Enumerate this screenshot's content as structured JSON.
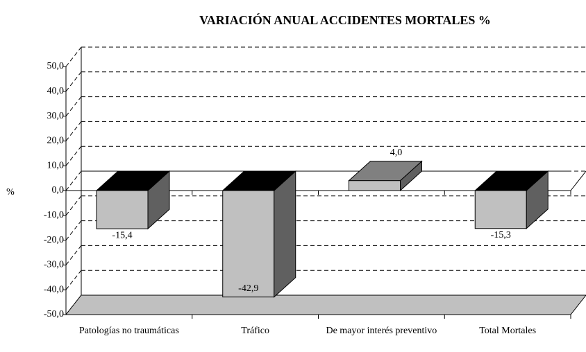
{
  "chart_data": {
    "type": "bar3d",
    "title": "VARIACIÓN ANUAL ACCIDENTES MORTALES %",
    "ylabel": "%",
    "categories": [
      "Patologías no traumáticas",
      "Tráfico",
      "De mayor interés preventivo",
      "Total Mortales"
    ],
    "values": [
      -15.4,
      -42.9,
      4.0,
      -15.3
    ],
    "value_labels": [
      "-15,4",
      "-42,9",
      "4,0",
      "-15,3"
    ],
    "ylim": [
      -50,
      50
    ],
    "yticks": [
      {
        "value": -50,
        "label": "-50,0"
      },
      {
        "value": -40,
        "label": "-40,0"
      },
      {
        "value": -30,
        "label": "-30,0"
      },
      {
        "value": -20,
        "label": "-20,0"
      },
      {
        "value": -10,
        "label": "-10,0"
      },
      {
        "value": 0,
        "label": "0,0"
      },
      {
        "value": 10,
        "label": "10,0"
      },
      {
        "value": 20,
        "label": "20,0"
      },
      {
        "value": 30,
        "label": "30,0"
      },
      {
        "value": 40,
        "label": "40,0"
      },
      {
        "value": 50,
        "label": "50,0"
      }
    ],
    "color": "#c0c0c0",
    "grid": true
  }
}
